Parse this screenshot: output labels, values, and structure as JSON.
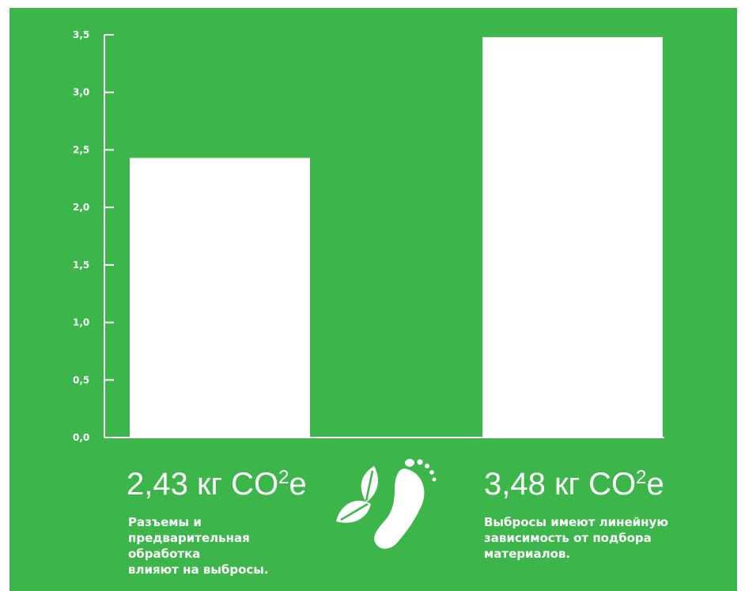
{
  "chart_data": {
    "type": "bar",
    "categories": [
      "",
      ""
    ],
    "values": [
      2.43,
      3.48
    ],
    "ylim": [
      0,
      3.5
    ],
    "yticks": [
      "0,0",
      "0,5",
      "1,0",
      "1,5",
      "2,0",
      "2,5",
      "3,0",
      "3,5"
    ],
    "grid": false,
    "colors": {
      "background": "#3cb54a",
      "bars": "#ffffff",
      "axis": "#ffffff"
    }
  },
  "labels": {
    "left": {
      "value_number": "2,43 кг CO",
      "value_sup": "2",
      "value_suffix": "е",
      "caption_lines": [
        "Разъемы и",
        "предварительная",
        "обработка",
        "влияют на выбросы."
      ]
    },
    "right": {
      "value_number": "3,48 кг CO",
      "value_sup": "2",
      "value_suffix": "е",
      "caption_lines": [
        "Выбросы имеют линейную",
        "зависимость от подбора",
        "материалов."
      ]
    }
  },
  "icons": {
    "center": "footprint-with-leaves-icon"
  }
}
